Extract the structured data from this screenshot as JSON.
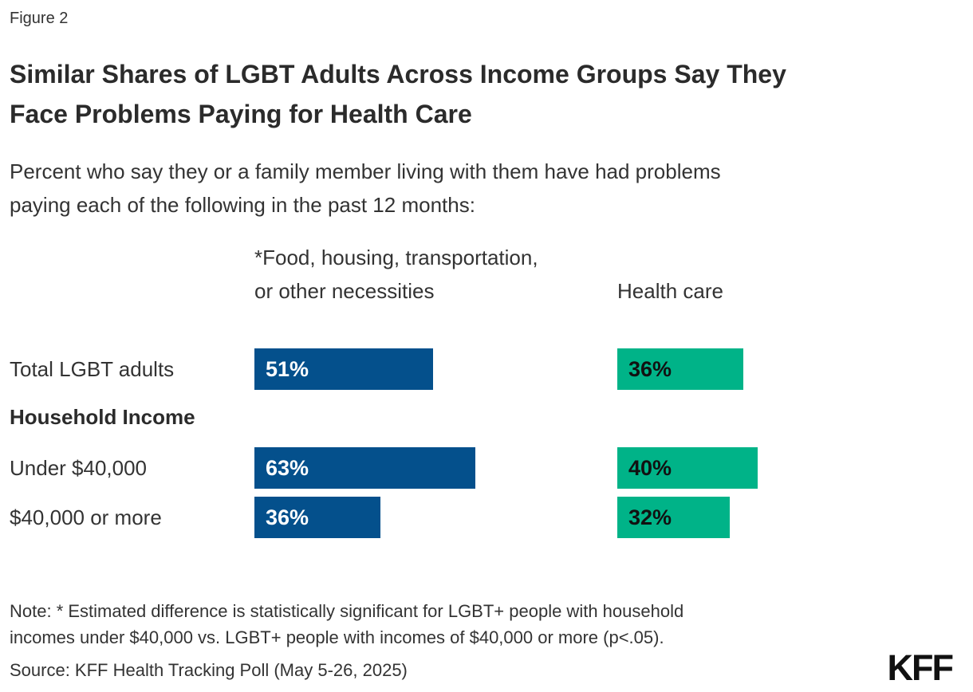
{
  "header": {
    "figure_label": "Figure 2",
    "title_lines": [
      "Similar Shares of LGBT Adults Across Income Groups Say They",
      "Face Problems Paying for Health Care"
    ],
    "subtitle_lines": [
      "Percent who say they or a family member living with them have had problems",
      "paying each of the following in the past 12 months:"
    ]
  },
  "chart_data": {
    "type": "bar",
    "orientation": "horizontal",
    "title": "Similar Shares of LGBT Adults Across Income Groups Say They Face Problems Paying for Health Care",
    "subtitle": "Percent who say they or a family member living with them have had problems paying each of the following in the past 12 months:",
    "categories": [
      "Total LGBT adults",
      "Under $40,000",
      "$40,000 or more"
    ],
    "section_label": "Household Income",
    "series": [
      {
        "name": "*Food, housing, transportation, or other necessities",
        "values": [
          51,
          63,
          36
        ],
        "color": "#04508C",
        "value_label_color": "#FFFFFF"
      },
      {
        "name": "Health care",
        "values": [
          36,
          40,
          32
        ],
        "color": "#00B388",
        "value_label_color": "#111111"
      }
    ],
    "value_suffix": "%",
    "xlim": [
      0,
      100
    ],
    "grid": false,
    "legend_position": "column-headers",
    "value_labels": "inside-left"
  },
  "footer": {
    "note_lines": [
      "Note: * Estimated difference is statistically significant for LGBT+ people with household",
      "incomes under $40,000 vs. LGBT+ people with incomes of $40,000 or more (p<.05)."
    ],
    "source": "Source: KFF Health Tracking Poll (May 5-26, 2025)",
    "logo_text": "KFF"
  },
  "colors": {
    "bar_blue": "#04508C",
    "bar_green": "#00B388",
    "text": "#333333",
    "title_text": "#2B2B2B",
    "logo": "#111111",
    "background": "#FFFFFF"
  }
}
